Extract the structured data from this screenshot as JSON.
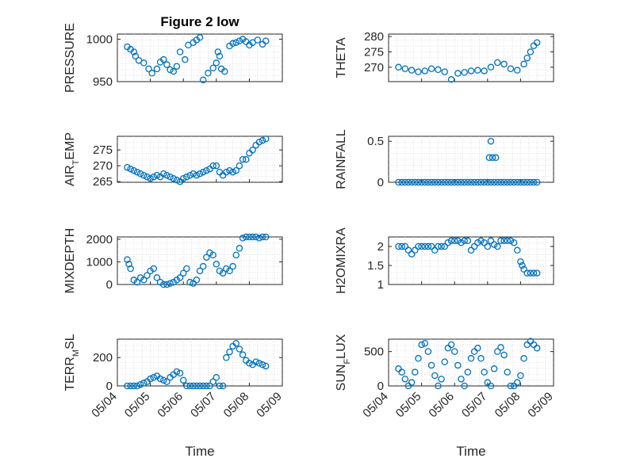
{
  "figure_title": "Figure 2 low",
  "chart_data": [
    {
      "type": "scatter",
      "title": "Figure 2 low",
      "ylabel": "PRESSURE",
      "yticks": [
        "950",
        "1000"
      ],
      "ylim": [
        950,
        1006
      ],
      "xlim": [
        0,
        5
      ],
      "grid": true,
      "x": [
        0.3,
        0.4,
        0.5,
        0.55,
        0.65,
        0.8,
        0.95,
        1.05,
        1.2,
        1.3,
        1.4,
        1.5,
        1.6,
        1.7,
        1.8,
        1.9,
        2.05,
        2.15,
        2.3,
        2.4,
        2.5,
        2.6,
        2.75,
        2.9,
        3.0,
        3.05,
        3.1,
        3.15,
        3.25,
        3.4,
        3.5,
        3.6,
        3.7,
        3.8,
        3.9,
        4.0,
        4.1,
        4.25,
        4.4,
        4.5
      ],
      "values": [
        991,
        988,
        985,
        980,
        975,
        972,
        965,
        960,
        965,
        973,
        976,
        970,
        964,
        962,
        968,
        985,
        976,
        993,
        996,
        999,
        1002,
        952,
        960,
        966,
        972,
        985,
        980,
        965,
        962,
        992,
        995,
        996,
        998,
        1000,
        997,
        993,
        996,
        999,
        994,
        998
      ],
      "series_color": "#0072bd"
    },
    {
      "type": "scatter",
      "ylabel": "THETA",
      "yticks": [
        "270",
        "275",
        "280"
      ],
      "ylim": [
        265.3,
        280.8
      ],
      "xlim": [
        0,
        5
      ],
      "grid": true,
      "x": [
        0.3,
        0.5,
        0.7,
        0.9,
        1.1,
        1.3,
        1.5,
        1.7,
        1.9,
        2.1,
        2.3,
        2.5,
        2.7,
        2.9,
        3.1,
        3.3,
        3.5,
        3.7,
        3.9,
        4.1,
        4.2,
        4.3,
        4.4,
        4.5
      ],
      "values": [
        270,
        269.5,
        269,
        268.5,
        268.8,
        269.5,
        269.2,
        268.5,
        266,
        268,
        268.3,
        268.8,
        269,
        268.8,
        270,
        271.5,
        271,
        269.5,
        269,
        271,
        273,
        275,
        277,
        278
      ],
      "series_color": "#0072bd"
    },
    {
      "type": "scatter",
      "ylabel": "AIR_TEMP",
      "yticks": [
        "265",
        "270",
        "275"
      ],
      "ylim": [
        264.8,
        279.3
      ],
      "xlim": [
        0,
        5
      ],
      "grid": true,
      "x": [
        0.3,
        0.4,
        0.5,
        0.6,
        0.7,
        0.8,
        0.9,
        1.0,
        1.1,
        1.2,
        1.3,
        1.4,
        1.5,
        1.6,
        1.7,
        1.8,
        1.9,
        2.0,
        2.1,
        2.2,
        2.3,
        2.4,
        2.5,
        2.6,
        2.7,
        2.8,
        2.9,
        3.0,
        3.1,
        3.2,
        3.3,
        3.4,
        3.5,
        3.6,
        3.7,
        3.8,
        3.9,
        4.0,
        4.1,
        4.2,
        4.3,
        4.4,
        4.5
      ],
      "values": [
        269.5,
        269,
        268.5,
        268,
        267.5,
        267,
        266.5,
        266,
        266.5,
        267,
        266.5,
        267.5,
        267,
        266.5,
        266,
        265.5,
        265,
        266,
        266.5,
        267,
        267.5,
        267,
        267.5,
        268,
        268.5,
        269,
        270,
        270,
        268,
        267,
        268,
        268.5,
        268,
        268.5,
        270,
        272,
        272,
        274,
        275,
        276.5,
        277.5,
        278,
        278.5
      ],
      "series_color": "#0072bd"
    },
    {
      "type": "scatter",
      "ylabel": "RAINFALL",
      "yticks": [
        "0",
        "0.5"
      ],
      "ylim": [
        0,
        0.56
      ],
      "xlim": [
        0,
        5
      ],
      "grid": true,
      "x": [
        0.3,
        0.4,
        0.5,
        0.6,
        0.7,
        0.8,
        0.9,
        1.0,
        1.1,
        1.2,
        1.3,
        1.4,
        1.5,
        1.6,
        1.7,
        1.8,
        1.9,
        2.0,
        2.1,
        2.2,
        2.3,
        2.4,
        2.5,
        2.6,
        2.7,
        2.8,
        2.9,
        3.0,
        3.1,
        3.2,
        3.3,
        3.4,
        3.5,
        3.6,
        3.7,
        3.8,
        3.9,
        4.0,
        4.1,
        4.2,
        4.3,
        4.4,
        4.5,
        3.05,
        3.15,
        3.1,
        3.25
      ],
      "values": [
        0,
        0,
        0,
        0,
        0,
        0,
        0,
        0,
        0,
        0,
        0,
        0,
        0,
        0,
        0,
        0,
        0,
        0,
        0,
        0,
        0,
        0,
        0,
        0,
        0,
        0,
        0,
        0,
        0,
        0,
        0,
        0,
        0,
        0,
        0,
        0,
        0,
        0,
        0,
        0,
        0,
        0,
        0,
        0.3,
        0.3,
        0.5,
        0.3
      ],
      "series_color": "#0072bd"
    },
    {
      "type": "scatter",
      "ylabel": "MIXDEPTH",
      "yticks": [
        "0",
        "1000",
        "2000"
      ],
      "ylim": [
        0,
        2100
      ],
      "xlim": [
        0,
        5
      ],
      "grid": true,
      "x": [
        0.3,
        0.35,
        0.4,
        0.5,
        0.6,
        0.7,
        0.8,
        0.9,
        1.0,
        1.1,
        1.2,
        1.3,
        1.4,
        1.5,
        1.6,
        1.7,
        1.8,
        1.9,
        2.0,
        2.1,
        2.2,
        2.3,
        2.4,
        2.5,
        2.6,
        2.7,
        2.8,
        2.9,
        3.0,
        3.1,
        3.2,
        3.3,
        3.4,
        3.5,
        3.6,
        3.7,
        3.8,
        3.9,
        4.0,
        4.1,
        4.2,
        4.3,
        4.4,
        4.5
      ],
      "values": [
        1100,
        900,
        700,
        200,
        100,
        300,
        200,
        400,
        600,
        700,
        300,
        100,
        0,
        0,
        50,
        100,
        200,
        300,
        500,
        700,
        100,
        50,
        200,
        600,
        800,
        1200,
        1400,
        1300,
        900,
        600,
        500,
        700,
        600,
        800,
        1300,
        1600,
        2050,
        2100,
        2100,
        2100,
        2100,
        2050,
        2100,
        2100
      ],
      "series_color": "#0072bd"
    },
    {
      "type": "scatter",
      "ylabel": "H2OMIXRA",
      "yticks": [
        "1",
        "1.5",
        "2"
      ],
      "ylim": [
        1,
        2.25
      ],
      "xlim": [
        0,
        5
      ],
      "grid": true,
      "x": [
        0.3,
        0.4,
        0.5,
        0.6,
        0.7,
        0.8,
        0.9,
        1.0,
        1.1,
        1.2,
        1.3,
        1.4,
        1.5,
        1.6,
        1.7,
        1.8,
        1.9,
        2.0,
        2.1,
        2.2,
        2.3,
        2.4,
        2.5,
        2.6,
        2.7,
        2.8,
        2.9,
        3.0,
        3.1,
        3.2,
        3.3,
        3.4,
        3.5,
        3.6,
        3.7,
        3.8,
        3.9,
        4.0,
        4.05,
        4.1,
        4.2,
        4.3,
        4.4,
        4.5
      ],
      "values": [
        2,
        2,
        2,
        1.9,
        1.8,
        1.9,
        2,
        2,
        2,
        2,
        2,
        1.9,
        2,
        2,
        2,
        2.1,
        2.15,
        2.15,
        2.15,
        2.1,
        2.15,
        2.15,
        1.9,
        2,
        2.1,
        2.15,
        2.1,
        2,
        2.15,
        2.05,
        2,
        2.15,
        2.15,
        2.15,
        2.15,
        2.1,
        1.9,
        1.6,
        1.5,
        1.4,
        1.3,
        1.3,
        1.3,
        1.3
      ],
      "series_color": "#0072bd"
    },
    {
      "type": "scatter",
      "ylabel": "TERR_MSL",
      "yticks": [
        "0",
        "200"
      ],
      "ylim": [
        0,
        330
      ],
      "xlim": [
        0,
        5
      ],
      "grid": true,
      "x": [
        0.3,
        0.4,
        0.5,
        0.6,
        0.7,
        0.8,
        0.9,
        1.0,
        1.1,
        1.2,
        1.3,
        1.4,
        1.5,
        1.6,
        1.7,
        1.8,
        1.9,
        2.0,
        2.1,
        2.2,
        2.3,
        2.4,
        2.5,
        2.6,
        2.7,
        2.8,
        2.9,
        3.0,
        3.1,
        3.2,
        3.3,
        3.4,
        3.5,
        3.6,
        3.7,
        3.8,
        3.9,
        4.0,
        4.1,
        4.2,
        4.3,
        4.4,
        4.5
      ],
      "values": [
        0,
        0,
        0,
        0,
        10,
        20,
        30,
        50,
        60,
        70,
        50,
        40,
        30,
        60,
        80,
        100,
        90,
        40,
        0,
        0,
        0,
        0,
        0,
        0,
        0,
        0,
        30,
        60,
        0,
        0,
        200,
        240,
        280,
        300,
        260,
        220,
        180,
        160,
        150,
        170,
        160,
        150,
        140
      ],
      "series_color": "#0072bd"
    },
    {
      "type": "scatter",
      "ylabel": "SUN_FLUX",
      "yticks": [
        "0",
        "500"
      ],
      "ylim": [
        0,
        680
      ],
      "xlim": [
        0,
        5
      ],
      "grid": true,
      "x": [
        0.3,
        0.4,
        0.5,
        0.6,
        0.7,
        0.8,
        0.9,
        1.0,
        1.1,
        1.2,
        1.3,
        1.4,
        1.5,
        1.6,
        1.7,
        1.8,
        1.9,
        2.0,
        2.1,
        2.2,
        2.3,
        2.4,
        2.5,
        2.6,
        2.7,
        2.8,
        2.9,
        3.0,
        3.1,
        3.2,
        3.3,
        3.4,
        3.5,
        3.6,
        3.7,
        3.8,
        3.9,
        4.0,
        4.1,
        4.2,
        4.3,
        4.4,
        4.5
      ],
      "values": [
        250,
        200,
        100,
        0,
        50,
        200,
        400,
        600,
        620,
        500,
        300,
        150,
        0,
        100,
        350,
        550,
        600,
        500,
        300,
        100,
        0,
        200,
        400,
        500,
        550,
        400,
        200,
        50,
        0,
        250,
        500,
        560,
        450,
        200,
        0,
        0,
        50,
        150,
        400,
        600,
        650,
        600,
        550
      ],
      "series_color": "#0072bd"
    }
  ],
  "x_tick_labels": [
    "05/04",
    "05/05",
    "05/06",
    "05/07",
    "05/08",
    "05/09"
  ],
  "x_axis_label": "Time",
  "left_xlabel": "Time",
  "right_xlabel": "Time"
}
